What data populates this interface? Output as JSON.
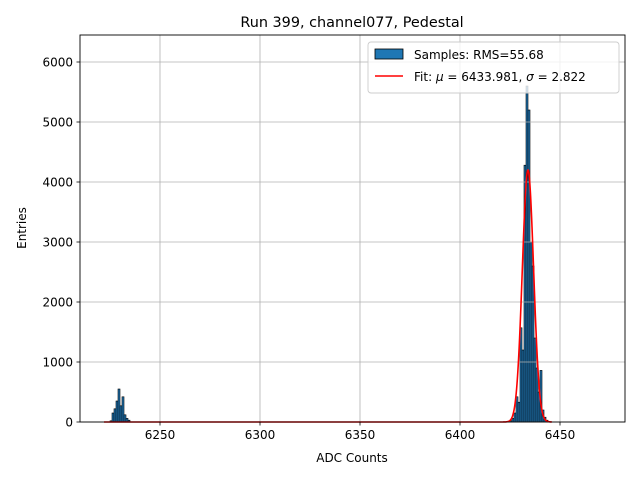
{
  "chart_data": {
    "type": "bar",
    "title": "Run 399, channel077, Pedestal",
    "xlabel": "ADC Counts",
    "ylabel": "Entries",
    "xlim": [
      6210,
      6482.5
    ],
    "ylim": [
      0,
      6450
    ],
    "xticks": [
      6250,
      6300,
      6350,
      6400,
      6450
    ],
    "yticks": [
      0,
      1000,
      2000,
      3000,
      4000,
      5000,
      6000
    ],
    "grid": true,
    "legend_placement": "top-right",
    "bin_width": 1,
    "histogram": {
      "name": "Samples: RMS=55.68",
      "color": "#1f77b4",
      "edgecolor": "#000000",
      "bins": [
        6225,
        6226,
        6227,
        6228,
        6229,
        6230,
        6231,
        6232,
        6233,
        6234,
        6425,
        6426,
        6427,
        6428,
        6429,
        6430,
        6431,
        6432,
        6433,
        6434,
        6435,
        6436,
        6437,
        6438,
        6439,
        6440,
        6441,
        6442,
        6443,
        6444
      ],
      "values": [
        20,
        150,
        220,
        350,
        550,
        270,
        420,
        120,
        60,
        30,
        20,
        60,
        150,
        420,
        330,
        1570,
        1200,
        4280,
        5600,
        5200,
        3000,
        2600,
        1400,
        900,
        500,
        860,
        200,
        80,
        30,
        10
      ]
    },
    "fit": {
      "name_prefix": "Fit: ",
      "label_mu": "μ",
      "mu_text": " = 6433.981, ",
      "label_sigma": "σ",
      "sigma_text": " = 2.822",
      "mu": 6433.981,
      "sigma": 2.822,
      "amplitude": 4200,
      "range": [
        6222,
        6446
      ],
      "color": "#ff0000"
    }
  }
}
